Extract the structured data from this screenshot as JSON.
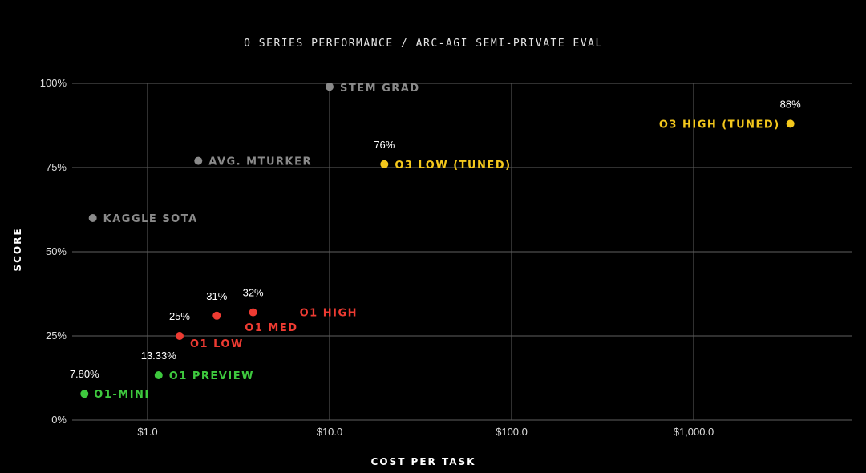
{
  "chart_data": {
    "type": "scatter",
    "title": "O SERIES PERFORMANCE / ARC-AGI SEMI-PRIVATE EVAL",
    "xlabel": "COST PER TASK",
    "ylabel": "SCORE",
    "x_scale": "log",
    "xlim": [
      0.43,
      60000
    ],
    "ylim": [
      0,
      100
    ],
    "grid": true,
    "x_ticks": [
      {
        "value": 1,
        "label": "$1.0"
      },
      {
        "value": 10,
        "label": "$10.0"
      },
      {
        "value": 100,
        "label": "$100.0"
      },
      {
        "value": 1000,
        "label": "$1,000.0"
      }
    ],
    "y_ticks": [
      {
        "value": 0,
        "label": "0%"
      },
      {
        "value": 25,
        "label": "25%"
      },
      {
        "value": 50,
        "label": "50%"
      },
      {
        "value": 75,
        "label": "75%"
      },
      {
        "value": 100,
        "label": "100%"
      }
    ],
    "points": [
      {
        "name": "O1-MINI",
        "x": 0.45,
        "y": 7.8,
        "value_label": "7.80%",
        "color": "#3ec93e"
      },
      {
        "name": "O1 PREVIEW",
        "x": 1.15,
        "y": 13.33,
        "value_label": "13.33%",
        "color": "#3ec93e"
      },
      {
        "name": "O1 LOW",
        "x": 1.5,
        "y": 25,
        "value_label": "25%",
        "color": "#ee3b32"
      },
      {
        "name": "O1 MED",
        "x": 2.4,
        "y": 31,
        "value_label": "31%",
        "color": "#ee3b32"
      },
      {
        "name": "O1 HIGH",
        "x": 3.8,
        "y": 32,
        "value_label": "32%",
        "color": "#ee3b32"
      },
      {
        "name": "KAGGLE SOTA",
        "x": 0.5,
        "y": 60,
        "value_label": "",
        "color": "#8a8a8a"
      },
      {
        "name": "AVG. MTURKER",
        "x": 1.9,
        "y": 77,
        "value_label": "",
        "color": "#8a8a8a"
      },
      {
        "name": "STEM GRAD",
        "x": 10,
        "y": 99,
        "value_label": "",
        "color": "#8a8a8a"
      },
      {
        "name": "O3 LOW (TUNED)",
        "x": 20,
        "y": 76,
        "value_label": "76%",
        "color": "#f4c81c"
      },
      {
        "name": "O3 HIGH (TUNED)",
        "x": 3400,
        "y": 88,
        "value_label": "88%",
        "color": "#f4c81c"
      }
    ]
  }
}
